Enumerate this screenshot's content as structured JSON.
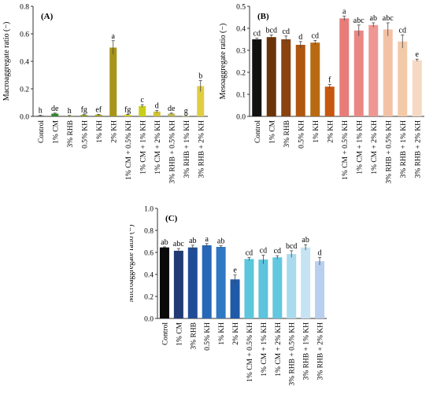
{
  "chart_data": [
    {
      "type": "bar",
      "panel_label": "(A)",
      "ylabel": "Macroaggregate ratio (−)",
      "ylim": [
        0,
        0.8
      ],
      "yticks": [
        "0.0",
        "0.2",
        "0.4",
        "0.6",
        "0.8"
      ],
      "ytick_values": [
        0,
        0.2,
        0.4,
        0.6,
        0.8
      ],
      "categories": [
        "Control",
        "1% CM",
        "3% RHB",
        "0.5% KH",
        "1% KH",
        "2% KH",
        "1% CM + 0.5% KH",
        "1% CM + 1% KH",
        "1% CM + 2% KH",
        "3% RHB + 0.5% KH",
        "3% RHB + 1% KH",
        "3% RHB + 2% KH"
      ],
      "values": [
        0.005,
        0.02,
        0.004,
        0.01,
        0.012,
        0.5,
        0.012,
        0.075,
        0.035,
        0.02,
        0.005,
        0.22
      ],
      "errors": [
        0.003,
        0.004,
        0.003,
        0.003,
        0.003,
        0.05,
        0.003,
        0.01,
        0.008,
        0.004,
        0.002,
        0.04
      ],
      "letters": [
        "h",
        "de",
        "h",
        "fg",
        "ef",
        "a",
        "fg",
        "c",
        "d",
        "de",
        "g",
        "b"
      ],
      "colors": [
        "#5b5b5b",
        "#2f8a2f",
        "#7f8f2a",
        "#8f9a24",
        "#a3a421",
        "#a89419",
        "#d6d42a",
        "#c9cf1a",
        "#cfc238",
        "#b9b95a",
        "#d4d38a",
        "#e0cd42"
      ],
      "grid": false
    },
    {
      "type": "bar",
      "panel_label": "(B)",
      "ylabel": "Mesoaggregate ratio (−)",
      "ylim": [
        0,
        0.5
      ],
      "yticks": [
        "0.0",
        "0.1",
        "0.2",
        "0.3",
        "0.4",
        "0.5"
      ],
      "ytick_values": [
        0,
        0.1,
        0.2,
        0.3,
        0.4,
        0.5
      ],
      "categories": [
        "Control",
        "1% CM",
        "3% RHB",
        "0.5% KH",
        "1% KH",
        "2% KH",
        "1% CM + 0.5% KH",
        "1% CM + 1% KH",
        "1% CM + 2% KH",
        "3% RHB + 0.5% KH",
        "3% RHB + 1% KH",
        "3% RHB + 2% KH"
      ],
      "values": [
        0.35,
        0.36,
        0.35,
        0.325,
        0.335,
        0.135,
        0.445,
        0.39,
        0.415,
        0.395,
        0.34,
        0.255
      ],
      "errors": [
        0.005,
        0.01,
        0.015,
        0.015,
        0.01,
        0.01,
        0.01,
        0.025,
        0.01,
        0.03,
        0.03,
        0.005
      ],
      "letters": [
        "cd",
        "bcd",
        "cd",
        "d",
        "cd",
        "f",
        "a",
        "abc",
        "ab",
        "abc",
        "cd",
        "e"
      ],
      "colors": [
        "#111111",
        "#6b3408",
        "#8a4210",
        "#b0560f",
        "#b86a12",
        "#c7560e",
        "#e77c78",
        "#ea8783",
        "#ee9793",
        "#f3c2a6",
        "#f3caa8",
        "#f6d9c4"
      ],
      "grid": false
    },
    {
      "type": "bar",
      "panel_label": "(C)",
      "ylabel": "Microaggregate ratio (−)",
      "ylim": [
        0,
        1.0
      ],
      "yticks": [
        "0.0",
        "0.2",
        "0.4",
        "0.6",
        "0.8",
        "1.0"
      ],
      "ytick_values": [
        0,
        0.2,
        0.4,
        0.6,
        0.8,
        1.0
      ],
      "categories": [
        "Control",
        "1% CM",
        "3% RHB",
        "0.5% KH",
        "1% KH",
        "2% KH",
        "1% CM + 0.5% KH",
        "1% CM + 1% KH",
        "1% CM + 2% KH",
        "3% RHB + 0.5% KH",
        "3% RHB + 1% KH",
        "3% RHB + 2% KH"
      ],
      "values": [
        0.645,
        0.615,
        0.645,
        0.665,
        0.65,
        0.355,
        0.54,
        0.535,
        0.555,
        0.585,
        0.645,
        0.52
      ],
      "errors": [
        0.005,
        0.02,
        0.02,
        0.015,
        0.01,
        0.04,
        0.015,
        0.04,
        0.015,
        0.03,
        0.025,
        0.035
      ],
      "letters": [
        "ab",
        "abc",
        "ab",
        "a",
        "ab",
        "e",
        "cd",
        "cd",
        "cd",
        "bcd",
        "ab",
        "d"
      ],
      "colors": [
        "#0a0a0a",
        "#1f3a75",
        "#1f4c96",
        "#2767b8",
        "#2f78c3",
        "#1f5aa8",
        "#5cc6dc",
        "#5ec3dc",
        "#62c7df",
        "#a9dbed",
        "#c5e3f2",
        "#b9cff0"
      ],
      "grid": false
    }
  ]
}
